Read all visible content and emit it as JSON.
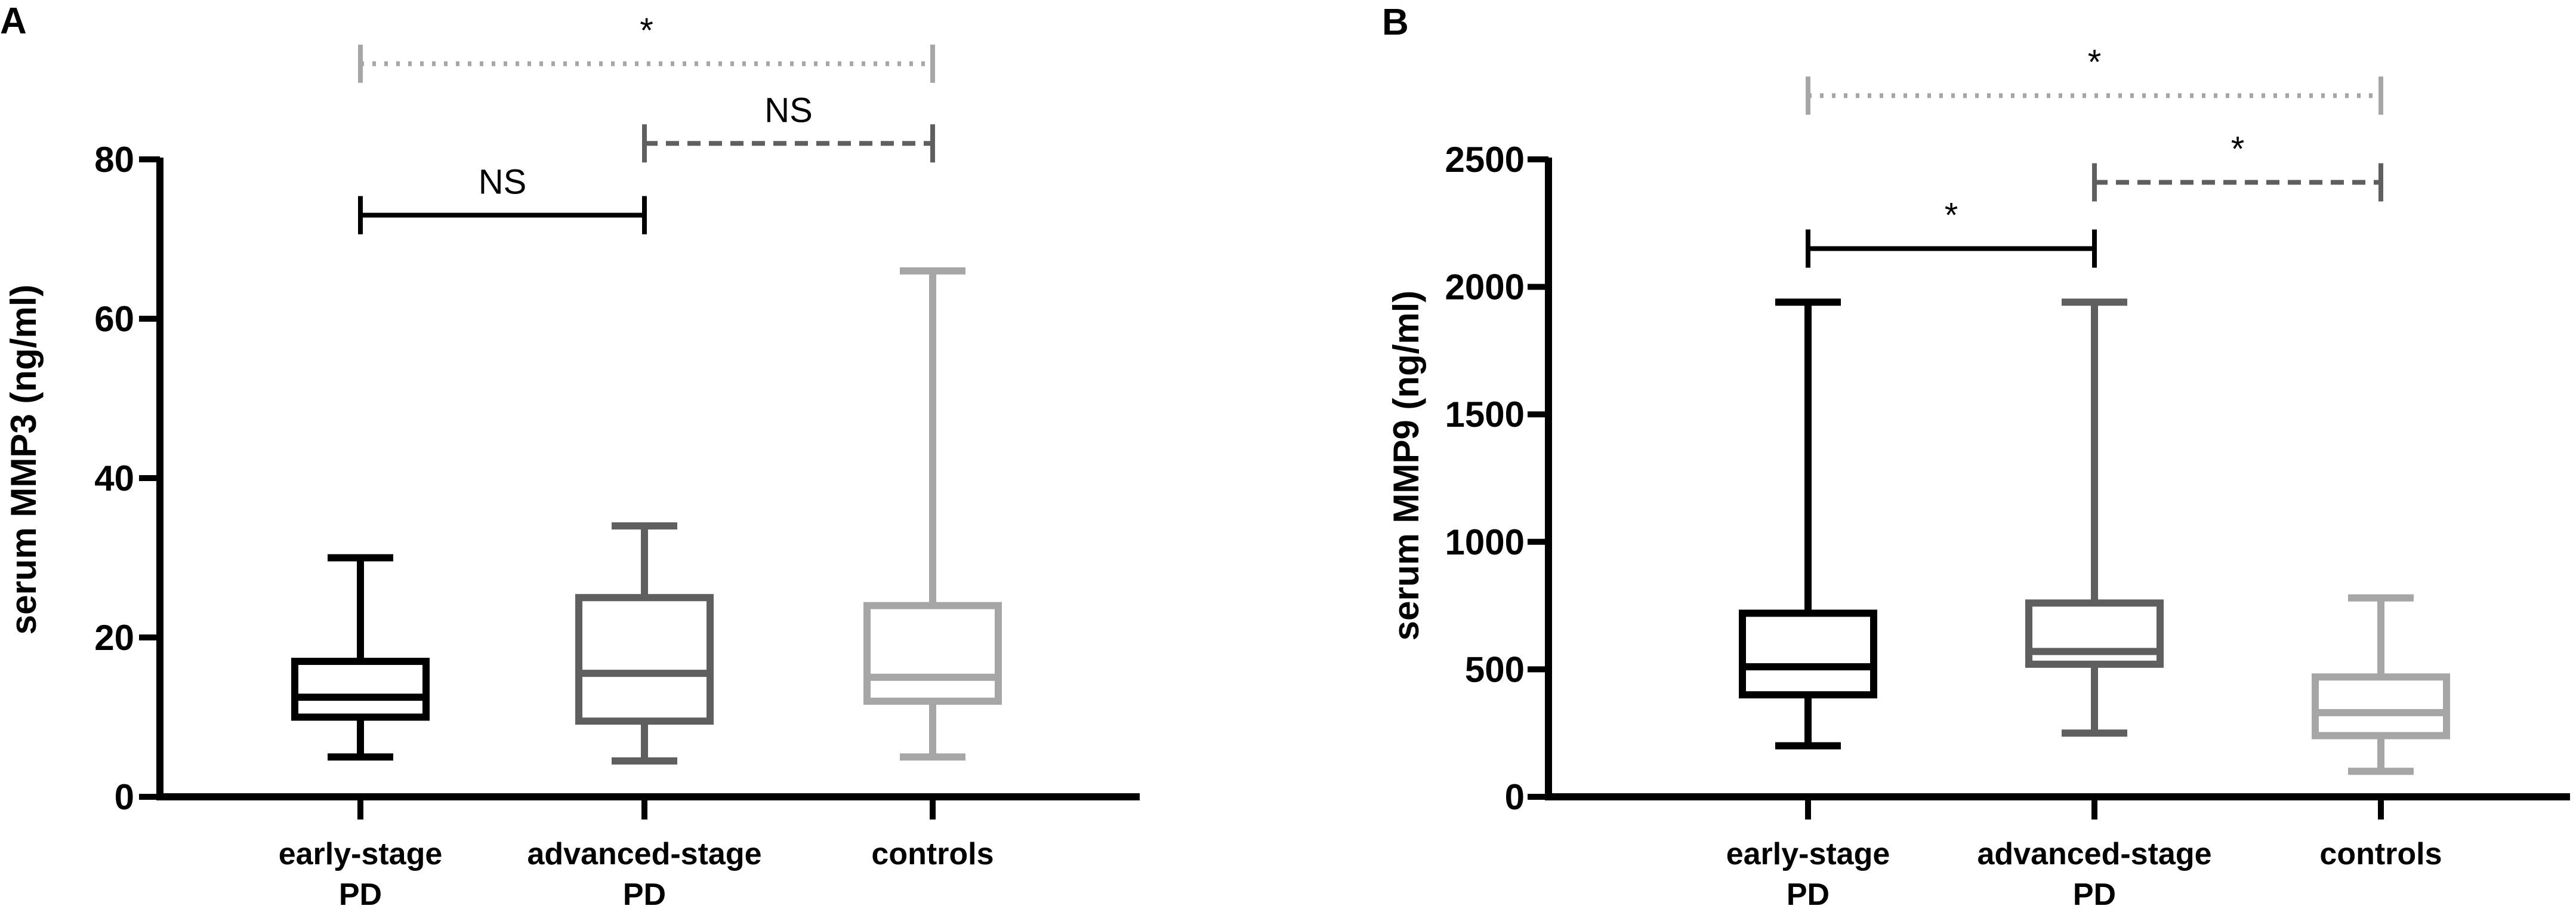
{
  "chart_data": [
    {
      "panel": "A",
      "type": "boxplot",
      "ylabel": "serum MMP3 (ng/ml)",
      "ylim": [
        0,
        80
      ],
      "yticks": [
        0,
        20,
        40,
        60,
        80
      ],
      "categories": [
        {
          "lines": [
            "early-stage",
            "PD"
          ],
          "color": "#000000"
        },
        {
          "lines": [
            "advanced-stage",
            "PD"
          ],
          "color": "#5f5f5f"
        },
        {
          "lines": [
            "controls"
          ],
          "color": "#a6a6a6"
        }
      ],
      "boxes": [
        {
          "min": 5,
          "q1": 10,
          "median": 12.5,
          "q3": 17,
          "max": 30
        },
        {
          "min": 4.5,
          "q1": 9.5,
          "median": 15.5,
          "q3": 25,
          "max": 34
        },
        {
          "min": 5,
          "q1": 12,
          "median": 15,
          "q3": 24,
          "max": 66
        }
      ],
      "comparisons": [
        {
          "from": 0,
          "to": 1,
          "label": "NS",
          "style": "solid",
          "color": "#000000",
          "level": 73
        },
        {
          "from": 1,
          "to": 2,
          "label": "NS",
          "style": "dashed",
          "color": "#5f5f5f",
          "level": 82
        },
        {
          "from": 0,
          "to": 2,
          "label": "*",
          "style": "dotted",
          "color": "#a6a6a6",
          "level": 92
        }
      ]
    },
    {
      "panel": "B",
      "type": "boxplot",
      "ylabel": "serum MMP9 (ng/ml)",
      "ylim": [
        0,
        2500
      ],
      "yticks": [
        0,
        500,
        1000,
        1500,
        2000,
        2500
      ],
      "categories": [
        {
          "lines": [
            "early-stage",
            "PD"
          ],
          "color": "#000000"
        },
        {
          "lines": [
            "advanced-stage",
            "PD"
          ],
          "color": "#5f5f5f"
        },
        {
          "lines": [
            "controls"
          ],
          "color": "#a6a6a6"
        }
      ],
      "boxes": [
        {
          "min": 200,
          "q1": 400,
          "median": 510,
          "q3": 720,
          "max": 1940
        },
        {
          "min": 250,
          "q1": 520,
          "median": 570,
          "q3": 760,
          "max": 1940
        },
        {
          "min": 100,
          "q1": 240,
          "median": 330,
          "q3": 470,
          "max": 780
        }
      ],
      "comparisons": [
        {
          "from": 0,
          "to": 1,
          "label": "*",
          "style": "solid",
          "color": "#000000",
          "level": 2150
        },
        {
          "from": 1,
          "to": 2,
          "label": "*",
          "style": "dashed",
          "color": "#5f5f5f",
          "level": 2410
        },
        {
          "from": 0,
          "to": 2,
          "label": "*",
          "style": "dotted",
          "color": "#a6a6a6",
          "level": 2750
        }
      ]
    }
  ]
}
